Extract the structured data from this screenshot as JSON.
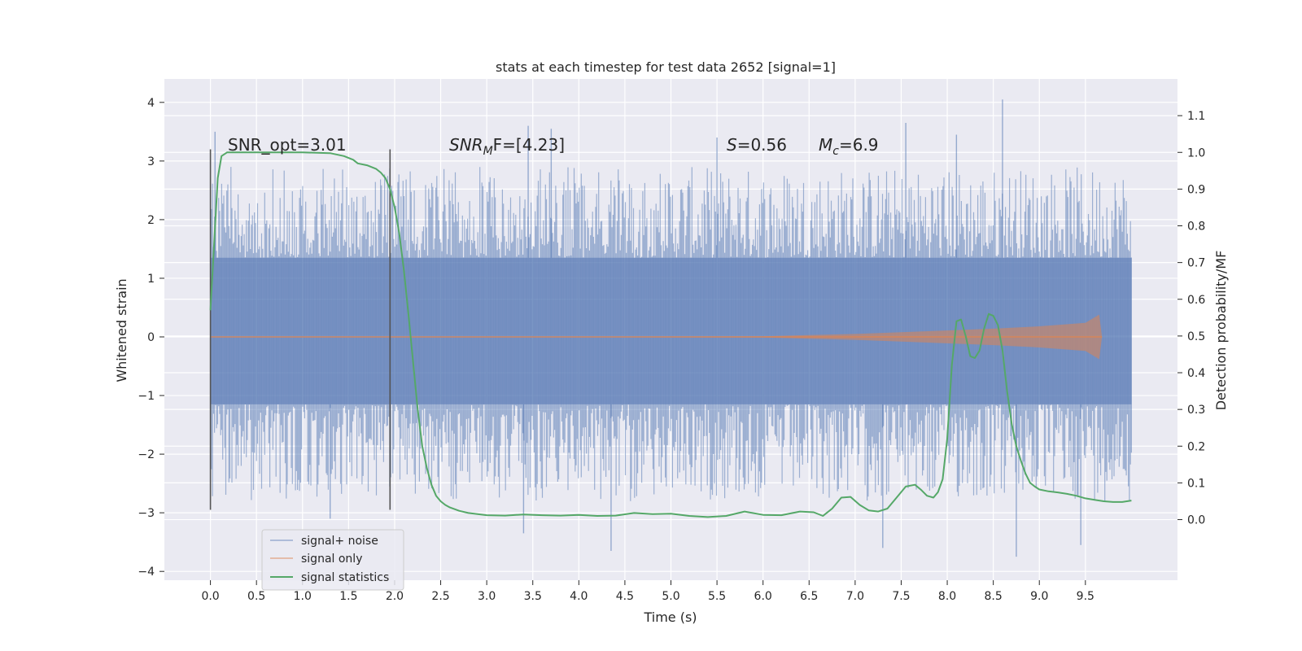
{
  "chart_data": {
    "type": "line",
    "title": "stats at each timestep for test data 2652 [signal=1]",
    "xlabel": "Time (s)",
    "ylabel": "Whitened strain",
    "ylabel_right": "Detection probability/MF",
    "xlim": [
      -0.5,
      10.5
    ],
    "ylim": [
      -4.15,
      4.4
    ],
    "ylim_right": [
      -0.165,
      1.2
    ],
    "x_ticks": [
      "0.0",
      "0.5",
      "1.0",
      "1.5",
      "2.0",
      "2.5",
      "3.0",
      "3.5",
      "4.0",
      "4.5",
      "5.0",
      "5.5",
      "6.0",
      "6.5",
      "7.0",
      "7.5",
      "8.0",
      "8.5",
      "9.0",
      "9.5"
    ],
    "y_ticks": [
      "−4",
      "−3",
      "−2",
      "−1",
      "0",
      "1",
      "2",
      "3",
      "4"
    ],
    "y_ticks_right": [
      "0.0",
      "0.1",
      "0.2",
      "0.3",
      "0.4",
      "0.5",
      "0.6",
      "0.7",
      "0.8",
      "0.9",
      "1.0",
      "1.1"
    ],
    "grid": true,
    "legend_position": "bottom-left",
    "annotations": {
      "snr_opt": "SNR_opt=3.01",
      "snr_mf_a": "SNR",
      "snr_mf_sub": "M",
      "snr_mf_b": "F=[4.23]",
      "s_a": "S",
      "s_b": "=0.56",
      "mc_a": "M",
      "mc_sub": "c",
      "mc_b": "=6.9"
    },
    "window_markers": {
      "x": [
        0.0,
        1.95
      ],
      "y_range": [
        -2.95,
        3.2
      ]
    },
    "series": [
      {
        "name": "signal+ noise",
        "color": "#4c72b0",
        "style": "noise",
        "x_range": [
          0.0,
          10.0
        ],
        "band": [
          -1.15,
          1.35
        ],
        "typical_peak": [
          -2.8,
          2.9
        ],
        "extremes": [
          {
            "x": 0.05,
            "y": 3.5
          },
          {
            "x": 1.3,
            "y": -3.1
          },
          {
            "x": 3.4,
            "y": -3.35
          },
          {
            "x": 3.45,
            "y": 3.6
          },
          {
            "x": 3.7,
            "y": 3.55
          },
          {
            "x": 4.35,
            "y": -3.65
          },
          {
            "x": 5.5,
            "y": 3.4
          },
          {
            "x": 7.3,
            "y": -3.6
          },
          {
            "x": 7.55,
            "y": 3.65
          },
          {
            "x": 8.1,
            "y": 3.45
          },
          {
            "x": 8.6,
            "y": 4.05
          },
          {
            "x": 8.75,
            "y": -3.75
          },
          {
            "x": 9.45,
            "y": -3.55
          }
        ]
      },
      {
        "name": "signal only",
        "color": "#dd8452",
        "style": "chirp",
        "x": [
          0,
          6.0,
          6.5,
          7.0,
          7.5,
          8.0,
          8.5,
          9.0,
          9.5,
          9.65,
          9.68
        ],
        "amplitude": [
          0.0,
          0.01,
          0.03,
          0.05,
          0.08,
          0.11,
          0.14,
          0.18,
          0.24,
          0.38,
          0.0
        ]
      },
      {
        "name": "signal statistics",
        "color": "#55a868",
        "axis": "right",
        "x": [
          0.0,
          0.04,
          0.08,
          0.12,
          0.18,
          0.3,
          0.5,
          1.0,
          1.3,
          1.45,
          1.55,
          1.6,
          1.7,
          1.8,
          1.85,
          1.9,
          1.95,
          2.0,
          2.05,
          2.1,
          2.15,
          2.2,
          2.25,
          2.3,
          2.35,
          2.4,
          2.45,
          2.5,
          2.55,
          2.6,
          2.7,
          2.8,
          3.0,
          3.2,
          3.4,
          3.6,
          3.8,
          4.0,
          4.2,
          4.4,
          4.6,
          4.8,
          5.0,
          5.2,
          5.4,
          5.6,
          5.8,
          6.0,
          6.2,
          6.4,
          6.55,
          6.65,
          6.75,
          6.85,
          6.95,
          7.05,
          7.15,
          7.25,
          7.35,
          7.45,
          7.55,
          7.65,
          7.72,
          7.78,
          7.85,
          7.9,
          7.95,
          8.0,
          8.05,
          8.1,
          8.15,
          8.2,
          8.25,
          8.3,
          8.35,
          8.4,
          8.45,
          8.5,
          8.55,
          8.6,
          8.65,
          8.7,
          8.75,
          8.8,
          8.85,
          8.9,
          8.95,
          9.0,
          9.1,
          9.2,
          9.3,
          9.4,
          9.5,
          9.6,
          9.7,
          9.8,
          9.9,
          10.0
        ],
        "values": [
          0.57,
          0.75,
          0.93,
          0.99,
          1.0,
          1.0,
          1.0,
          1.0,
          0.998,
          0.99,
          0.98,
          0.97,
          0.965,
          0.955,
          0.945,
          0.93,
          0.9,
          0.85,
          0.78,
          0.68,
          0.56,
          0.43,
          0.3,
          0.2,
          0.14,
          0.095,
          0.065,
          0.05,
          0.04,
          0.033,
          0.024,
          0.018,
          0.012,
          0.011,
          0.014,
          0.012,
          0.011,
          0.013,
          0.01,
          0.011,
          0.018,
          0.015,
          0.016,
          0.01,
          0.007,
          0.01,
          0.022,
          0.013,
          0.012,
          0.022,
          0.02,
          0.01,
          0.03,
          0.06,
          0.062,
          0.04,
          0.025,
          0.022,
          0.03,
          0.06,
          0.09,
          0.095,
          0.08,
          0.065,
          0.06,
          0.075,
          0.11,
          0.22,
          0.42,
          0.54,
          0.545,
          0.5,
          0.445,
          0.44,
          0.46,
          0.52,
          0.56,
          0.555,
          0.53,
          0.46,
          0.35,
          0.26,
          0.2,
          0.16,
          0.125,
          0.1,
          0.09,
          0.082,
          0.077,
          0.074,
          0.07,
          0.065,
          0.058,
          0.054,
          0.05,
          0.048,
          0.048,
          0.052
        ]
      }
    ]
  }
}
